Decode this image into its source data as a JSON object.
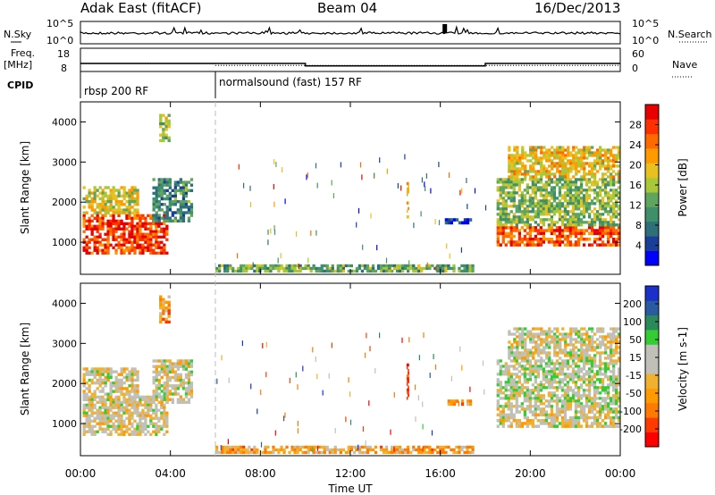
{
  "header": {
    "title_left": "Adak East (fitACF)",
    "title_center": "Beam 04",
    "title_right": "16/Dec/2013"
  },
  "left_labels": {
    "nsky": "N.Sky",
    "freq_line1": "Freq.",
    "freq_line2": "[MHz]",
    "cpid": "CPID"
  },
  "right_labels": {
    "nsearch": "N.Search",
    "nave": "Nave"
  },
  "ticks": {
    "noise_left": [
      "10^5",
      "10^0"
    ],
    "noise_right": [
      "10^5",
      "10^0"
    ],
    "freq_left": [
      "18",
      "8"
    ],
    "freq_right": [
      "60",
      "0"
    ]
  },
  "cpid_labels": [
    "rbsp 200 RF",
    "normalsound (fast) 157 RF"
  ],
  "x_axis": {
    "label": "Time UT",
    "ticks": [
      "00:00",
      "04:00",
      "08:00",
      "12:00",
      "16:00",
      "20:00",
      "00:00"
    ]
  },
  "colors": {
    "power": [
      "#0000ff",
      "#1a3f99",
      "#2f6f7a",
      "#3f8f6a",
      "#5fa45f",
      "#a8c83a",
      "#e8c020",
      "#ff9a00",
      "#ff6a00",
      "#ff3000",
      "#e80000"
    ],
    "velocity": [
      "#ff0000",
      "#ff3a00",
      "#ff7a00",
      "#ff9a00",
      "#f0b030",
      "#c0c0b8",
      "#c0c0b8",
      "#33cc33",
      "#2a8a5a",
      "#2a5aa0",
      "#1a30c8"
    ]
  },
  "chart_data": [
    {
      "type": "line",
      "panel": "noise",
      "series": [
        {
          "name": "N.Sky"
        },
        {
          "name": "N.Search"
        }
      ]
    },
    {
      "type": "line",
      "panel": "frequency",
      "series": [
        {
          "name": "Freq. [MHz]",
          "segments": [
            {
              "from_h": 0,
              "to_h": 10,
              "value": 12
            },
            {
              "from_h": 10,
              "to_h": 18,
              "value": 10.6
            },
            {
              "from_h": 18,
              "to_h": 24,
              "value": 12
            }
          ]
        },
        {
          "name": "Nave",
          "segments": [
            {
              "from_h": 0,
              "to_h": 6,
              "value": 23
            },
            {
              "from_h": 6,
              "to_h": 24,
              "value": 17
            }
          ]
        }
      ]
    },
    {
      "type": "heatmap",
      "panel": "power",
      "ylabel": "Slant Range [km]",
      "colorbar_label": "Power [dB]",
      "colorbar_ticks": [
        "28",
        "24",
        "20",
        "16",
        "12",
        "8",
        "4"
      ],
      "y_ticks": [
        "4000",
        "3000",
        "2000",
        "1000"
      ],
      "xlim": [
        0,
        24
      ],
      "ylim": [
        200,
        4500
      ],
      "regions": [
        {
          "t0": 0.1,
          "t1": 3.9,
          "r0": 700,
          "r1": 1700,
          "level": 0.85
        },
        {
          "t0": 0.1,
          "t1": 2.6,
          "r0": 1700,
          "r1": 2400,
          "level": 0.55
        },
        {
          "t0": 3.2,
          "t1": 5.0,
          "r0": 1500,
          "r1": 2600,
          "level": 0.3
        },
        {
          "t0": 3.5,
          "t1": 4.0,
          "r0": 3500,
          "r1": 4200,
          "level": 0.5
        },
        {
          "t0": 6.0,
          "t1": 17.5,
          "r0": 250,
          "r1": 450,
          "level": 0.4
        },
        {
          "t0": 16.2,
          "t1": 17.4,
          "r0": 1450,
          "r1": 1600,
          "level": 0.1
        },
        {
          "t0": 14.5,
          "t1": 14.6,
          "r0": 1600,
          "r1": 2500,
          "level": 0.7
        },
        {
          "t0": 18.5,
          "t1": 24,
          "r0": 900,
          "r1": 1400,
          "level": 0.82
        },
        {
          "t0": 18.5,
          "t1": 24,
          "r0": 1400,
          "r1": 2600,
          "level": 0.45
        },
        {
          "t0": 19.0,
          "t1": 24,
          "r0": 2600,
          "r1": 3400,
          "level": 0.6
        }
      ]
    },
    {
      "type": "heatmap",
      "panel": "velocity",
      "ylabel": "Slant Range [km]",
      "colorbar_label": "Velocity [m s-1]",
      "colorbar_ticks": [
        "200",
        "100",
        "50",
        "15",
        "-15",
        "-50",
        "-100",
        "-200"
      ],
      "y_ticks": [
        "4000",
        "3000",
        "2000",
        "1000"
      ],
      "xlim": [
        0,
        24
      ],
      "ylim": [
        200,
        4500
      ],
      "regions": [
        {
          "t0": 0.1,
          "t1": 3.9,
          "r0": 700,
          "r1": 1700,
          "level": 0.5
        },
        {
          "t0": 0.1,
          "t1": 2.6,
          "r0": 1700,
          "r1": 2400,
          "level": 0.5
        },
        {
          "t0": 3.2,
          "t1": 5.0,
          "r0": 1500,
          "r1": 2600,
          "level": 0.5
        },
        {
          "t0": 3.5,
          "t1": 4.0,
          "r0": 3500,
          "r1": 4200,
          "level": 0.3
        },
        {
          "t0": 6.0,
          "t1": 17.5,
          "r0": 250,
          "r1": 450,
          "level": 0.35
        },
        {
          "t0": 16.2,
          "t1": 17.4,
          "r0": 1450,
          "r1": 1600,
          "level": 0.3
        },
        {
          "t0": 14.5,
          "t1": 14.6,
          "r0": 1600,
          "r1": 2500,
          "level": 0.1
        },
        {
          "t0": 18.5,
          "t1": 24,
          "r0": 900,
          "r1": 1400,
          "level": 0.5
        },
        {
          "t0": 18.5,
          "t1": 24,
          "r0": 1400,
          "r1": 2600,
          "level": 0.55
        },
        {
          "t0": 19.0,
          "t1": 24,
          "r0": 2600,
          "r1": 3400,
          "level": 0.5
        }
      ]
    }
  ]
}
